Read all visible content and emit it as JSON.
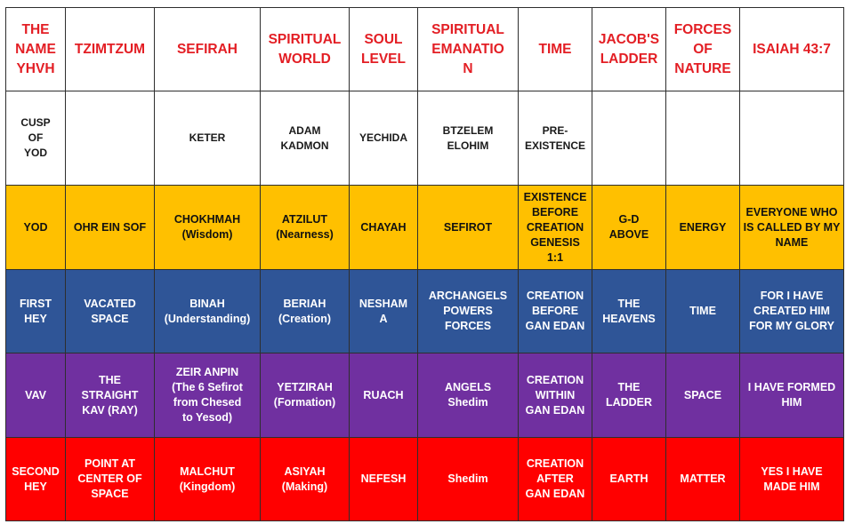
{
  "colors": {
    "header_text": "#e31e24",
    "row_gold": "#ffc000",
    "row_blue": "#2f5597",
    "row_purple": "#7030a0",
    "row_red": "#ff0000"
  },
  "table": {
    "headers": [
      "THE\nNAME\nYHVH",
      "TZIMTZUM",
      "SEFIRAH",
      "SPIRITUAL\nWORLD",
      "SOUL\nLEVEL",
      "SPIRITUAL\nEMANATIO\nN",
      "TIME",
      "JACOB'S\nLADDER",
      "FORCES\nOF\nNATURE",
      "ISAIAH 43:7"
    ],
    "rows": [
      [
        "CUSP\nOF\nYOD",
        "",
        "KETER",
        "ADAM\nKADMON",
        "YECHIDA",
        "BTZELEM\nELOHIM",
        "PRE-\nEXISTENCE",
        "",
        "",
        ""
      ],
      [
        "YOD",
        "OHR EIN SOF",
        "CHOKHMAH\n(Wisdom)",
        "ATZILUT\n(Nearness)",
        "CHAYAH",
        "SEFIROT",
        "EXISTENCE\nBEFORE\nCREATION\nGENESIS\n1:1",
        "G-D\nABOVE",
        "ENERGY",
        "EVERYONE WHO\nIS CALLED BY MY\nNAME"
      ],
      [
        "FIRST\nHEY",
        "VACATED\nSPACE",
        "BINAH\n(Understanding)",
        "BERIAH\n(Creation)",
        "NESHAM\nA",
        "ARCHANGELS\nPOWERS\nFORCES",
        "CREATION\nBEFORE\nGAN EDAN",
        "THE\nHEAVENS",
        "TIME",
        "FOR I HAVE\nCREATED HIM\nFOR MY GLORY"
      ],
      [
        "VAV",
        "THE\nSTRAIGHT\nKAV (RAY)",
        "ZEIR ANPIN\n(The 6 Sefirot\nfrom Chesed\nto Yesod)",
        "YETZIRAH\n(Formation)",
        "RUACH",
        "ANGELS\nShedim",
        "CREATION\nWITHIN\nGAN EDAN",
        "THE\nLADDER",
        "SPACE",
        "I HAVE FORMED\nHIM"
      ],
      [
        "SECOND\nHEY",
        "POINT AT\nCENTER OF\nSPACE",
        "MALCHUT\n(Kingdom)",
        "ASIYAH\n(Making)",
        "NEFESH",
        "Shedim",
        "CREATION\nAFTER\nGAN EDAN",
        "EARTH",
        "MATTER",
        "YES I HAVE\nMADE HIM"
      ]
    ]
  }
}
